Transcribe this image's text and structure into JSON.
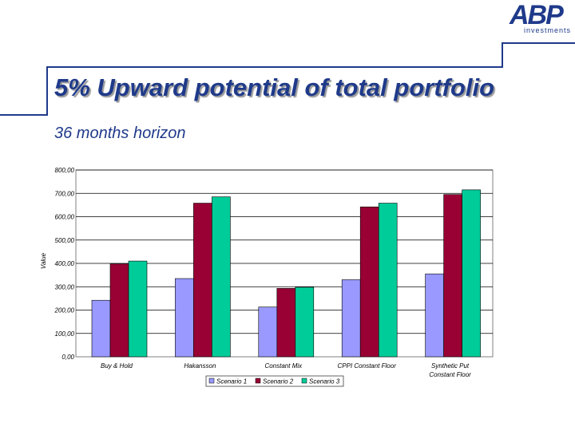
{
  "header": {
    "logo_text": "ABP",
    "logo_sub": "investments",
    "title": "5% Upward potential of total portfolio",
    "subtitle": "36 months horizon"
  },
  "colors": {
    "brand": "#1f3a8a",
    "scenario1": "#9999ff",
    "scenario2": "#990033",
    "scenario3": "#00cc99"
  },
  "chart_data": {
    "type": "bar",
    "ylabel": "Value",
    "ylim": [
      0,
      800
    ],
    "yticks": [
      "0,00",
      "100,00",
      "200,00",
      "300,00",
      "400,00",
      "500,00",
      "600,00",
      "700,00",
      "800,00"
    ],
    "grid": true,
    "legend_position": "bottom",
    "categories": [
      [
        "Buy & Hold"
      ],
      [
        "Hakansson"
      ],
      [
        "Constant Mix"
      ],
      [
        "CPPI Constant Floor"
      ],
      [
        "Synthetic Put",
        "Constant Floor"
      ]
    ],
    "series": [
      {
        "name": "Scenario 1",
        "values": [
          242,
          335,
          213,
          330,
          355
        ]
      },
      {
        "name": "Scenario 2",
        "values": [
          398,
          658,
          293,
          642,
          695
        ]
      },
      {
        "name": "Scenario 3",
        "values": [
          410,
          685,
          298,
          658,
          715
        ]
      }
    ]
  }
}
